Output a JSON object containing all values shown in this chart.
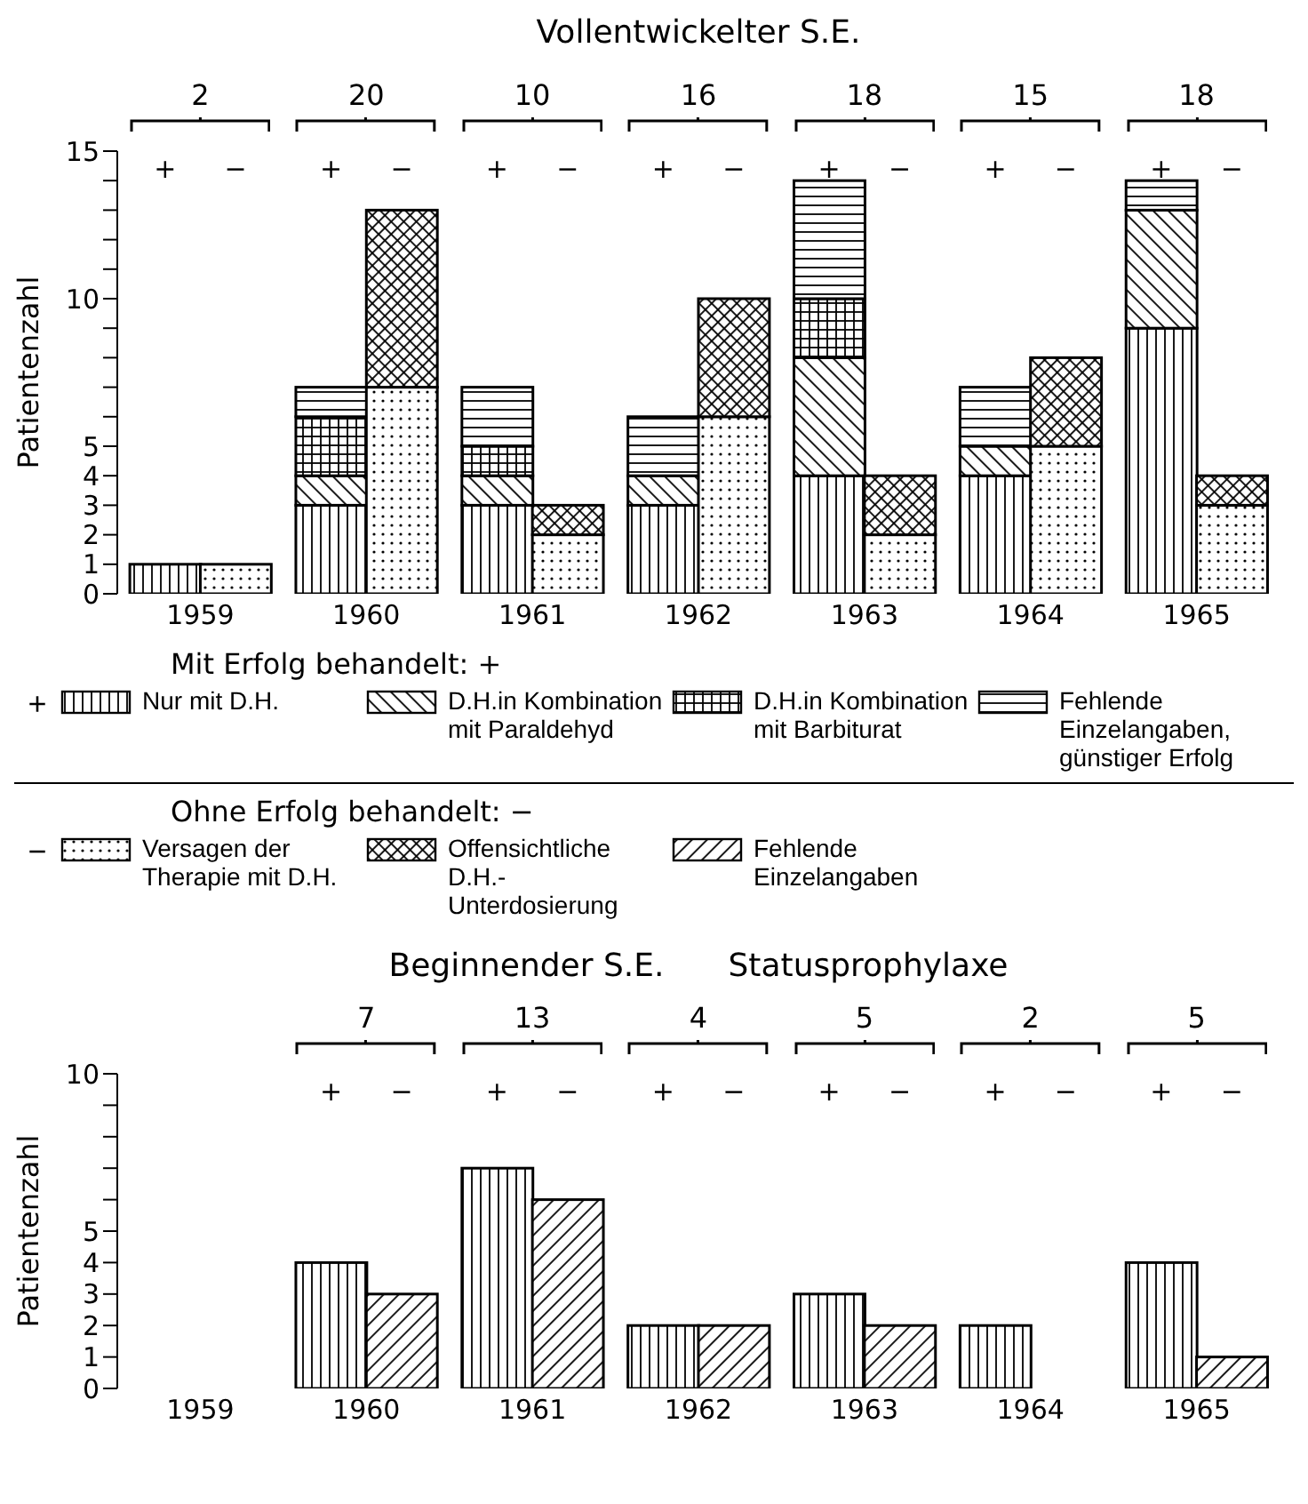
{
  "chart_data": [
    {
      "type": "bar",
      "title": "Vollentwickelter S.E.",
      "ylabel": "Patientenzahl",
      "stacked": true,
      "legend": "bottom",
      "categories": [
        "+",
        "−",
        "+",
        "−",
        "+",
        "−",
        "+",
        "−",
        "+",
        "−",
        "+",
        "−",
        "+",
        "−"
      ],
      "annotations": [
        "1959",
        "1960",
        "1961",
        "1962",
        "1963",
        "1964",
        "1965",
        "2",
        "20",
        "10",
        "16",
        "18",
        "15",
        "18",
        "Mit Erfolg behandelt: +",
        "Ohne Erfolg behandelt: −"
      ],
      "ylim": [
        0,
        15
      ],
      "yticks": [
        0,
        1,
        2,
        3,
        4,
        5,
        {
          "value": 6,
          "label": null
        },
        {
          "value": 7,
          "label": null
        },
        {
          "value": 8,
          "label": null
        },
        {
          "value": 9,
          "label": null
        },
        10,
        {
          "value": 11,
          "label": null
        },
        {
          "value": 12,
          "label": null
        },
        {
          "value": 13,
          "label": null
        },
        {
          "value": 14,
          "label": null
        },
        15
      ],
      "series": [
        {
          "name": "Nur mit D.H.",
          "color": "#000000",
          "values": [
            1,
            null,
            3,
            null,
            3,
            null,
            3,
            null,
            4,
            null,
            4,
            null,
            9,
            null
          ]
        },
        {
          "name": "D.H.in Kombination mit Paraldehyd",
          "color": "#000000",
          "values": [
            0,
            null,
            1,
            null,
            1,
            null,
            1,
            null,
            4,
            null,
            1,
            null,
            4,
            null
          ]
        },
        {
          "name": "D.H.in Kombination mit Barbiturat",
          "color": "#000000",
          "values": [
            0,
            null,
            2,
            null,
            1,
            null,
            0,
            null,
            2,
            null,
            0,
            null,
            0,
            null
          ]
        },
        {
          "name": "Fehlende Einzelangaben, günstiger Erfolg",
          "color": "#000000",
          "values": [
            0,
            null,
            1,
            null,
            2,
            null,
            2,
            null,
            4,
            null,
            2,
            null,
            1,
            null
          ]
        },
        {
          "name": "Versagen der Therapie mit D.H.",
          "color": "#000000",
          "values": [
            null,
            1,
            null,
            7,
            null,
            2,
            null,
            6,
            null,
            2,
            null,
            5,
            null,
            3
          ]
        },
        {
          "name": "Offensichtliche D.H.-Unterdosierung",
          "color": "#000000",
          "values": [
            null,
            0,
            null,
            6,
            null,
            1,
            null,
            4,
            null,
            2,
            null,
            3,
            null,
            1
          ]
        }
      ]
    },
    {
      "type": "bar",
      "title": "Beginnender S.E.",
      "subtitle": "Statusprophylaxe",
      "ylabel": "Patientenzahl",
      "stacked": true,
      "categories": [
        null,
        null,
        "+",
        "−",
        "+",
        "−",
        "+",
        "−",
        "+",
        "−",
        "+",
        "−",
        "+",
        "−"
      ],
      "annotations": [
        "1959",
        "1960",
        "1961",
        "1962",
        "1963",
        "1964",
        "1965",
        "7",
        "13",
        "4",
        "5",
        "2",
        "5"
      ],
      "ylim": [
        0,
        10
      ],
      "yticks": [
        0,
        1,
        2,
        3,
        4,
        5,
        {
          "value": 6,
          "label": null
        },
        {
          "value": 7,
          "label": null
        },
        {
          "value": 8,
          "label": null
        },
        {
          "value": 9,
          "label": null
        },
        10
      ],
      "series": [
        {
          "color": "#000000",
          "values": [
            null,
            null,
            4,
            null,
            7,
            null,
            2,
            null,
            3,
            null,
            2,
            null,
            4,
            null
          ]
        },
        {
          "name": "Fehlende Einzelangaben",
          "color": "#000000",
          "values": [
            null,
            null,
            null,
            3,
            null,
            6,
            null,
            2,
            null,
            2,
            null,
            0,
            null,
            1
          ]
        }
      ]
    }
  ]
}
